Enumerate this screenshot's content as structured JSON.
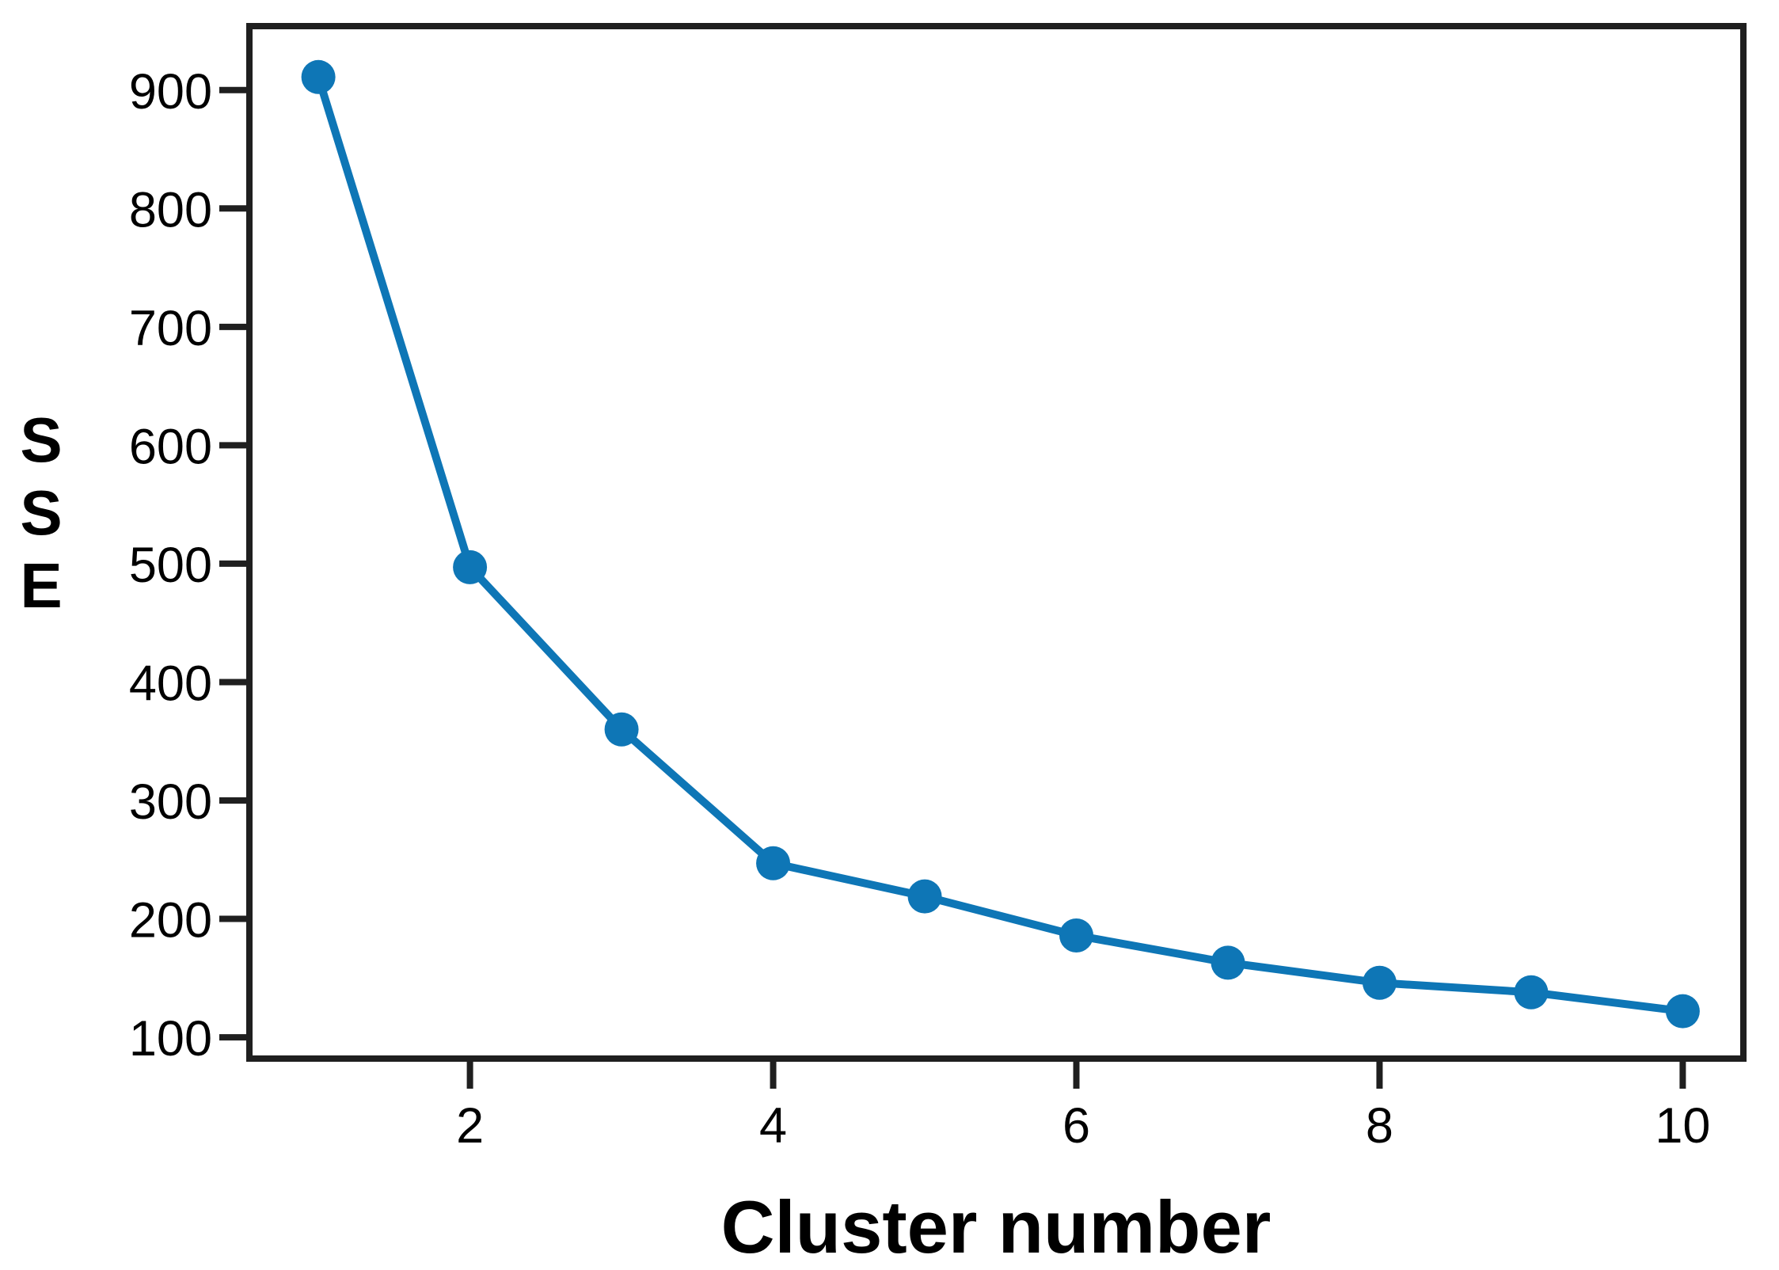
{
  "figure": {
    "background_color": "#ffffff",
    "axis_color": "#1f1f1f",
    "line_color": "#0e76b6",
    "marker_color": "#0e76b6"
  },
  "chart_data": {
    "type": "line",
    "title": "",
    "xlabel": "Cluster number",
    "ylabel": "SSE",
    "x": [
      1,
      2,
      3,
      4,
      5,
      6,
      7,
      8,
      9,
      10
    ],
    "y": [
      911,
      497,
      360,
      247,
      219,
      186,
      163,
      146,
      138,
      122
    ],
    "series_name": "SSE",
    "x_ticks": [
      2,
      4,
      6,
      8,
      10
    ],
    "y_ticks": [
      100,
      200,
      300,
      400,
      500,
      600,
      700,
      800,
      900
    ],
    "xlim": [
      0.545,
      10.4
    ],
    "ylim": [
      82,
      954
    ],
    "grid": false,
    "legend": "none",
    "marker": "circle",
    "line_width": 10,
    "marker_radius": 21.5
  }
}
